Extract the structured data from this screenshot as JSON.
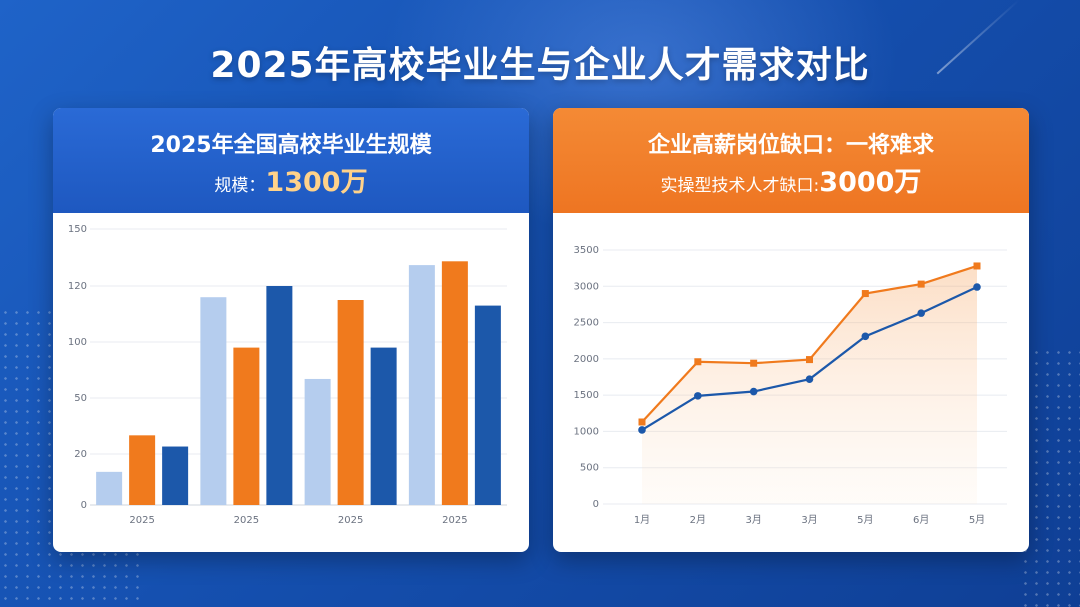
{
  "title": "2025年高校毕业生与企业人才需求对比",
  "left_card": {
    "title": "2025年全国高校毕业生规模",
    "sub_label": "规模：",
    "sub_value": "1300万"
  },
  "right_card": {
    "title": "企业高薪岗位缺口：一将难求",
    "sub_label": "实操型技术人才缺口:",
    "sub_value": "3000万"
  },
  "colors": {
    "light_blue": "#b5cdee",
    "orange": "#f07a1d",
    "dark_blue": "#1c58aa"
  },
  "chart_data": [
    {
      "type": "bar",
      "categories": [
        "2025",
        "2025",
        "2025",
        "2025"
      ],
      "y_tick_labels": [
        "0",
        "20",
        "50",
        "100",
        "120",
        "150"
      ],
      "grid": true,
      "series": [
        {
          "color": "#b5cdee",
          "values": [
            13,
            116,
            67,
            131
          ]
        },
        {
          "color": "#f07a1d",
          "values": [
            30,
            95,
            115,
            133
          ]
        },
        {
          "color": "#1c58aa",
          "values": [
            24,
            120,
            95,
            113
          ]
        }
      ]
    },
    {
      "type": "line",
      "categories": [
        "1月",
        "2月",
        "3月",
        "3月",
        "5月",
        "6月",
        "5月"
      ],
      "ylim": [
        0,
        3500
      ],
      "y_ticks": [
        0,
        500,
        1000,
        1500,
        2000,
        2500,
        3000,
        3500
      ],
      "grid": true,
      "series": [
        {
          "color": "#f07a1d",
          "values": [
            1130,
            1960,
            1940,
            1990,
            2900,
            3030,
            3280
          ]
        },
        {
          "color": "#1c58aa",
          "values": [
            1020,
            1490,
            1550,
            1720,
            2310,
            2630,
            2990
          ]
        }
      ]
    }
  ]
}
